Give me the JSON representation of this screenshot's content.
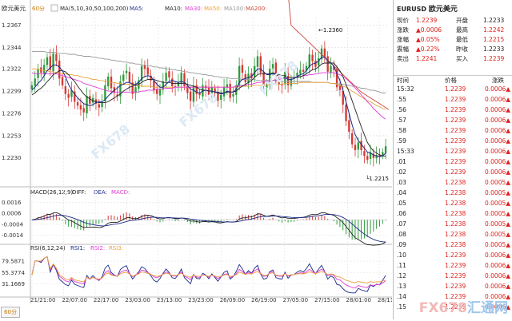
{
  "chart_header": {
    "symbol": "欧元美元",
    "period": "60分",
    "ma_label": "MA(5,10,30,50,100,200)",
    "ma_items": [
      "MA5:",
      "MA10:",
      "MA30:",
      "MA50:",
      "MA100:",
      "MA200:"
    ],
    "macd_label": "MACD(26,12,9)",
    "macd_items": [
      "DIFF:",
      "DEA:",
      "MACD:"
    ],
    "rsi_label": "RSI(6,12,24)",
    "rsi_items": [
      "RSI1:",
      "RSI2:",
      "RSI3:"
    ],
    "period_tab": "60分"
  },
  "colors": {
    "up": "#2e9b3d",
    "down": "#d23a35",
    "ma5": "#1c2b8a",
    "ma10": "#222222",
    "ma30": "#e03ad6",
    "ma50": "#e8a33c",
    "ma100": "#9a9a9a",
    "ma200": "#c8473a",
    "accent_red": "#e0201b"
  },
  "chart_data": [
    {
      "type": "candlestick",
      "yticks": [
        "1.2367",
        "1.2344",
        "1.2322",
        "1.2299",
        "1.2276",
        "1.2253",
        "1.2230"
      ],
      "ylim": [
        1.2205,
        1.2375
      ],
      "xticks": [
        "21/21:00",
        "22/07:00",
        "22/17:00",
        "23/03:00",
        "23/13:00",
        "23/23:00",
        "26/09:00",
        "26/19:00",
        "27/05:00",
        "27/15:00",
        "28/01:00",
        "28/11:00"
      ],
      "annotations": [
        {
          "text": "1.2360",
          "at": "high"
        },
        {
          "text": "1.2215",
          "at": "low"
        }
      ],
      "closes": [
        1.2305,
        1.2312,
        1.2322,
        1.2318,
        1.2326,
        1.2334,
        1.2321,
        1.2338,
        1.233,
        1.2312,
        1.2305,
        1.2296,
        1.2292,
        1.23,
        1.2288,
        1.2284,
        1.228,
        1.2277,
        1.2294,
        1.2286,
        1.2292,
        1.2286,
        1.2282,
        1.2287,
        1.2305,
        1.2314,
        1.2302,
        1.2297,
        1.2294,
        1.2309,
        1.2316,
        1.232,
        1.2308,
        1.2296,
        1.2303,
        1.231,
        1.2325,
        1.2322,
        1.2316,
        1.231,
        1.23,
        1.2296,
        1.2301,
        1.2309,
        1.2318,
        1.2313,
        1.2304,
        1.2303,
        1.2308,
        1.2318,
        1.2304,
        1.2297,
        1.2289,
        1.2305,
        1.2296,
        1.2295,
        1.2305,
        1.2302,
        1.2295,
        1.2303,
        1.2297,
        1.2289,
        1.2295,
        1.2303,
        1.2306,
        1.2292,
        1.2296,
        1.2305,
        1.2325,
        1.2318,
        1.2308,
        1.2317,
        1.2312,
        1.2325,
        1.2335,
        1.2318,
        1.2304,
        1.2306,
        1.2322,
        1.2327,
        1.2309,
        1.2306,
        1.2305,
        1.2319,
        1.2305,
        1.2312,
        1.2313,
        1.2318,
        1.2321,
        1.2319,
        1.2325,
        1.2337,
        1.233,
        1.2324,
        1.2333,
        1.2343,
        1.2334,
        1.2319,
        1.2325,
        1.2321,
        1.2303,
        1.23,
        1.2285,
        1.2268,
        1.2257,
        1.2244,
        1.2238,
        1.2246,
        1.2238,
        1.2232,
        1.2228,
        1.2236,
        1.223,
        1.2233,
        1.2231,
        1.2236,
        1.2242
      ],
      "ma5": [
        1.23,
        1.2303,
        1.2307,
        1.231,
        1.2315,
        1.232,
        1.2323,
        1.2326,
        1.2326,
        1.2324,
        1.232,
        1.2314,
        1.2306,
        1.23,
        1.2296,
        1.2292,
        1.2289,
        1.2286,
        1.2285,
        1.2284,
        1.2285,
        1.2287,
        1.2288,
        1.2288,
        1.229,
        1.2294,
        1.2297,
        1.23,
        1.2302,
        1.2305,
        1.2306,
        1.2308,
        1.2308,
        1.2306,
        1.2306,
        1.2308,
        1.2312,
        1.2314,
        1.2315,
        1.2314,
        1.231,
        1.2306,
        1.2303,
        1.2303,
        1.2306,
        1.2309,
        1.231,
        1.2309,
        1.2308,
        1.2309,
        1.2308,
        1.2305,
        1.2301,
        1.23,
        1.2298,
        1.2297,
        1.2299,
        1.23,
        1.2299,
        1.2299,
        1.2298,
        1.2297,
        1.2296,
        1.2297,
        1.2299,
        1.2298,
        1.2298,
        1.2301,
        1.2308,
        1.2311,
        1.2312,
        1.2313,
        1.2314,
        1.2318,
        1.2322,
        1.2322,
        1.2319,
        1.2316,
        1.2316,
        1.2317,
        1.2316,
        1.2314,
        1.2313,
        1.2313,
        1.2311,
        1.2311,
        1.2312,
        1.2314,
        1.2316,
        1.2317,
        1.232,
        1.2325,
        1.2327,
        1.2328,
        1.233,
        1.2334,
        1.2334,
        1.233,
        1.2328,
        1.2325,
        1.2317,
        1.231,
        1.23,
        1.2288,
        1.2276,
        1.2264,
        1.2254,
        1.2248,
        1.2244,
        1.224,
        1.2236,
        1.2235,
        1.2233,
        1.2232,
        1.2231,
        1.2232,
        1.2235
      ],
      "ma10": [
        1.2295,
        1.2297,
        1.23,
        1.2302,
        1.2305,
        1.2309,
        1.2312,
        1.2316,
        1.2318,
        1.232,
        1.232,
        1.2319,
        1.2316,
        1.2312,
        1.2309,
        1.2304,
        1.23,
        1.2296,
        1.2293,
        1.2291,
        1.2289,
        1.2288,
        1.2287,
        1.2287,
        1.2287,
        1.2288,
        1.229,
        1.2292,
        1.2294,
        1.2296,
        1.2299,
        1.2301,
        1.2303,
        1.2304,
        1.2305,
        1.2306,
        1.2308,
        1.231,
        1.2311,
        1.2311,
        1.2311,
        1.231,
        1.2309,
        1.2308,
        1.2308,
        1.2308,
        1.2307,
        1.2307,
        1.2307,
        1.2307,
        1.2307,
        1.2306,
        1.2305,
        1.2304,
        1.2303,
        1.2301,
        1.23,
        1.23,
        1.2299,
        1.2299,
        1.2298,
        1.2298,
        1.2297,
        1.2297,
        1.2298,
        1.2298,
        1.2298,
        1.2299,
        1.2302,
        1.2304,
        1.2306,
        1.2308,
        1.231,
        1.2313,
        1.2316,
        1.2317,
        1.2317,
        1.2317,
        1.2317,
        1.2318,
        1.2317,
        1.2316,
        1.2315,
        1.2315,
        1.2313,
        1.2313,
        1.2313,
        1.2313,
        1.2314,
        1.2315,
        1.2317,
        1.2319,
        1.2321,
        1.2322,
        1.2324,
        1.2327,
        1.2328,
        1.2328,
        1.2328,
        1.2328,
        1.2324,
        1.232,
        1.2314,
        1.2306,
        1.2298,
        1.2289,
        1.228,
        1.2271,
        1.2262,
        1.2254,
        1.2246,
        1.2241,
        1.2237,
        1.2235,
        1.2233,
        1.2232,
        1.2232
      ],
      "ma30": [
        1.2318,
        1.2317,
        1.2317,
        1.2317,
        1.2317,
        1.2317,
        1.2317,
        1.2317,
        1.2317,
        1.2316,
        1.2315,
        1.2314,
        1.2313,
        1.2312,
        1.2311,
        1.231,
        1.2309,
        1.2307,
        1.2306,
        1.2305,
        1.2304,
        1.2303,
        1.2302,
        1.2301,
        1.23,
        1.2299,
        1.2299,
        1.2298,
        1.2298,
        1.2298,
        1.2298,
        1.2298,
        1.2298,
        1.2298,
        1.2298,
        1.2298,
        1.2299,
        1.2299,
        1.23,
        1.23,
        1.23,
        1.2301,
        1.2301,
        1.2301,
        1.2302,
        1.2302,
        1.2302,
        1.2303,
        1.2303,
        1.2303,
        1.2303,
        1.2303,
        1.2303,
        1.2303,
        1.2303,
        1.2303,
        1.2303,
        1.2303,
        1.2303,
        1.2303,
        1.2303,
        1.2303,
        1.2303,
        1.2303,
        1.2303,
        1.2303,
        1.2303,
        1.2304,
        1.2304,
        1.2305,
        1.2305,
        1.2306,
        1.2306,
        1.2307,
        1.2308,
        1.2308,
        1.2309,
        1.2309,
        1.231,
        1.231,
        1.2311,
        1.2311,
        1.2312,
        1.2312,
        1.2313,
        1.2313,
        1.2313,
        1.2314,
        1.2314,
        1.2315,
        1.2315,
        1.2316,
        1.2316,
        1.2317,
        1.2317,
        1.2318,
        1.2318,
        1.2318,
        1.2318,
        1.2318,
        1.2317,
        1.2316,
        1.2314,
        1.2312,
        1.2309,
        1.2306,
        1.2302,
        1.2299,
        1.2295,
        1.2292,
        1.2288,
        1.2285,
        1.2281,
        1.2278,
        1.2275,
        1.2272,
        1.227
      ],
      "ma50": [
        1.2322,
        1.2322,
        1.2321,
        1.2321,
        1.232,
        1.232,
        1.2319,
        1.2319,
        1.2318,
        1.2318,
        1.2317,
        1.2317,
        1.2316,
        1.2316,
        1.2315,
        1.2315,
        1.2314,
        1.2313,
        1.2313,
        1.2312,
        1.2311,
        1.2311,
        1.231,
        1.231,
        1.2309,
        1.2309,
        1.2308,
        1.2308,
        1.2307,
        1.2307,
        1.2306,
        1.2306,
        1.2306,
        1.2305,
        1.2305,
        1.2305,
        1.2304,
        1.2304,
        1.2304,
        1.2304,
        1.2303,
        1.2303,
        1.2303,
        1.2303,
        1.2303,
        1.2303,
        1.2303,
        1.2303,
        1.2303,
        1.2303,
        1.2303,
        1.2303,
        1.2303,
        1.2303,
        1.2303,
        1.2303,
        1.2303,
        1.2303,
        1.2303,
        1.2303,
        1.2303,
        1.2303,
        1.2303,
        1.2303,
        1.2303,
        1.2303,
        1.2303,
        1.2303,
        1.2304,
        1.2304,
        1.2304,
        1.2304,
        1.2304,
        1.2305,
        1.2305,
        1.2305,
        1.2305,
        1.2305,
        1.2306,
        1.2306,
        1.2306,
        1.2306,
        1.2306,
        1.2307,
        1.2307,
        1.2307,
        1.2307,
        1.2307,
        1.2308,
        1.2308,
        1.2308,
        1.2308,
        1.2308,
        1.2308,
        1.2308,
        1.2308,
        1.2308,
        1.2308,
        1.2307,
        1.2307,
        1.2306,
        1.2305,
        1.2304,
        1.2303,
        1.2301,
        1.2299,
        1.2297,
        1.2295,
        1.2293,
        1.2291,
        1.2289,
        1.2288,
        1.2286,
        1.2284,
        1.2283,
        1.2281,
        1.228
      ],
      "ma100": [
        1.234,
        1.234,
        1.234,
        1.234,
        1.234,
        1.2339,
        1.2339,
        1.2339,
        1.2339,
        1.2338,
        1.2338,
        1.2338,
        1.2337,
        1.2337,
        1.2337,
        1.2336,
        1.2336,
        1.2335,
        1.2335,
        1.2335,
        1.2334,
        1.2334,
        1.2333,
        1.2333,
        1.2332,
        1.2332,
        1.2331,
        1.2331,
        1.233,
        1.233,
        1.2329,
        1.2329,
        1.2328,
        1.2328,
        1.2327,
        1.2327,
        1.2326,
        1.2326,
        1.2325,
        1.2325,
        1.2324,
        1.2324,
        1.2323,
        1.2323,
        1.2322,
        1.2322,
        1.2321,
        1.2321,
        1.232,
        1.232,
        1.2319,
        1.2319,
        1.2318,
        1.2318,
        1.2317,
        1.2317,
        1.2316,
        1.2316,
        1.2315,
        1.2315,
        1.2314,
        1.2314,
        1.2313,
        1.2313,
        1.2313,
        1.2312,
        1.2312,
        1.2312,
        1.2312,
        1.2311,
        1.2311,
        1.2311,
        1.2311,
        1.2311,
        1.231,
        1.231,
        1.231,
        1.231,
        1.231,
        1.231,
        1.231,
        1.2309,
        1.2309,
        1.2309,
        1.2309,
        1.2309,
        1.2309,
        1.2309,
        1.2309,
        1.2309,
        1.2309,
        1.2309,
        1.2308,
        1.2308,
        1.2308,
        1.2308,
        1.2308,
        1.2308,
        1.2307,
        1.2307,
        1.2307,
        1.2306,
        1.2306,
        1.2305,
        1.2305,
        1.2304,
        1.2304,
        1.2303,
        1.2302,
        1.2302,
        1.2301,
        1.23,
        1.23,
        1.2299,
        1.2298,
        1.2297,
        1.2297
      ],
      "ma200": [
        1.24,
        1.24,
        1.24,
        1.24,
        1.24,
        1.24,
        1.24,
        1.24,
        1.24,
        1.24,
        1.24,
        1.24,
        1.24,
        1.24,
        1.24,
        1.24,
        1.24,
        1.24,
        1.24,
        1.24,
        1.24,
        1.24,
        1.24,
        1.24,
        1.24,
        1.24,
        1.24,
        1.24,
        1.24,
        1.24,
        1.24,
        1.24,
        1.24,
        1.24,
        1.24,
        1.24,
        1.24,
        1.24,
        1.24,
        1.24,
        1.24,
        1.24,
        1.24,
        1.24,
        1.24,
        1.24,
        1.24,
        1.24,
        1.24,
        1.24,
        1.24,
        1.24,
        1.24,
        1.24,
        1.24,
        1.24,
        1.24,
        1.24,
        1.24,
        1.24,
        1.24,
        1.24,
        1.24,
        1.24,
        1.24,
        1.24,
        1.24,
        1.24,
        1.24,
        1.24,
        1.24,
        1.24,
        1.24,
        1.24,
        1.24,
        1.24,
        1.24,
        1.24,
        1.24,
        1.24,
        1.24,
        1.24,
        1.24,
        1.24,
        1.24,
        1.2367,
        1.2364,
        1.2361,
        1.2358,
        1.2355,
        1.2352,
        1.2349,
        1.2346,
        1.2343,
        1.234,
        1.2337,
        1.2334,
        1.2331,
        1.2328,
        1.2325,
        1.2322,
        1.2319,
        1.2316,
        1.2313,
        1.231,
        1.2307,
        1.2304,
        1.2301,
        1.2298,
        1.2296,
        1.2294,
        1.2292,
        1.229,
        1.2288,
        1.2286,
        1.2284,
        1.2282,
        1.228
      ]
    },
    {
      "type": "bar",
      "yticks": [
        "0.0016",
        "0.0006",
        "-0.0004",
        "-0.0014"
      ],
      "ylim": [
        -0.0018,
        0.002
      ]
    },
    {
      "type": "line",
      "yticks": [
        "79.5871",
        "55.3774",
        "31.1669"
      ],
      "ylim": [
        10,
        95
      ]
    }
  ],
  "quote": {
    "title_code": "EURUSD",
    "title_name": "欧元美元",
    "fields": [
      {
        "label": "现价",
        "value": "1.2239",
        "label2": "开盘",
        "value2": "1.2233",
        "red1": true,
        "red2": false
      },
      {
        "label": "涨跌",
        "value": "▲0.0006",
        "label2": "最高",
        "value2": "1.2242",
        "red1": true,
        "red2": true
      },
      {
        "label": "涨幅",
        "value": "▲0.05%",
        "label2": "最低",
        "value2": "1.2215",
        "red1": true,
        "red2": true
      },
      {
        "label": "震幅",
        "value": "▲0.22%",
        "label2": "昨收",
        "value2": "1.2233",
        "red1": true,
        "red2": false
      },
      {
        "label": "卖出",
        "value": "1.2241",
        "label2": "买入",
        "value2": "1.2239",
        "red1": true,
        "red2": true
      }
    ],
    "tick_headers": [
      "时间",
      "价格",
      "涨跌"
    ],
    "ticks": [
      {
        "time": "15:32",
        "price": "1.2239",
        "change": "0.0006▲"
      },
      {
        "time": ".55",
        "price": "1.2239",
        "change": "0.0006▲"
      },
      {
        "time": ".56",
        "price": "1.2239",
        "change": "0.0006▲"
      },
      {
        "time": ".57",
        "price": "1.2239",
        "change": "0.0006▲"
      },
      {
        "time": ".58",
        "price": "1.2239",
        "change": "0.0006▲"
      },
      {
        "time": ".59",
        "price": "1.2239",
        "change": "0.0006▲"
      },
      {
        "time": "15:33",
        "price": "1.2239",
        "change": "0.0006▲"
      },
      {
        "time": ".01",
        "price": "1.2239",
        "change": "0.0006▲"
      },
      {
        "time": ".02",
        "price": "1.2239",
        "change": "0.0006▲"
      },
      {
        "time": ".03",
        "price": "1.2238",
        "change": "0.0005▲"
      },
      {
        "time": ".04",
        "price": "1.2238",
        "change": "0.0005▲"
      },
      {
        "time": ".05",
        "price": "1.2238",
        "change": "0.0005▲"
      },
      {
        "time": ".06",
        "price": "1.2238",
        "change": "0.0005▲"
      },
      {
        "time": ".07",
        "price": "1.2238",
        "change": "0.0005▲"
      },
      {
        "time": ".08",
        "price": "1.2238",
        "change": "0.0005▲"
      },
      {
        "time": ".09",
        "price": "1.2238",
        "change": "0.0005▲"
      },
      {
        "time": ".10",
        "price": "1.2239",
        "change": "0.0006▲"
      },
      {
        "time": ".11",
        "price": "1.2239",
        "change": "0.0006▲"
      },
      {
        "time": ".12",
        "price": "1.2239",
        "change": "0.0006▲"
      },
      {
        "time": ".13",
        "price": "1.2239",
        "change": "0.0006▲"
      },
      {
        "time": ".14",
        "price": "1.2239",
        "change": "0.0006▲"
      },
      {
        "time": ".15",
        "price": "1.2239",
        "change": "0.0006▲"
      }
    ]
  },
  "watermarks": [
    "FX678",
    "汇通网"
  ]
}
